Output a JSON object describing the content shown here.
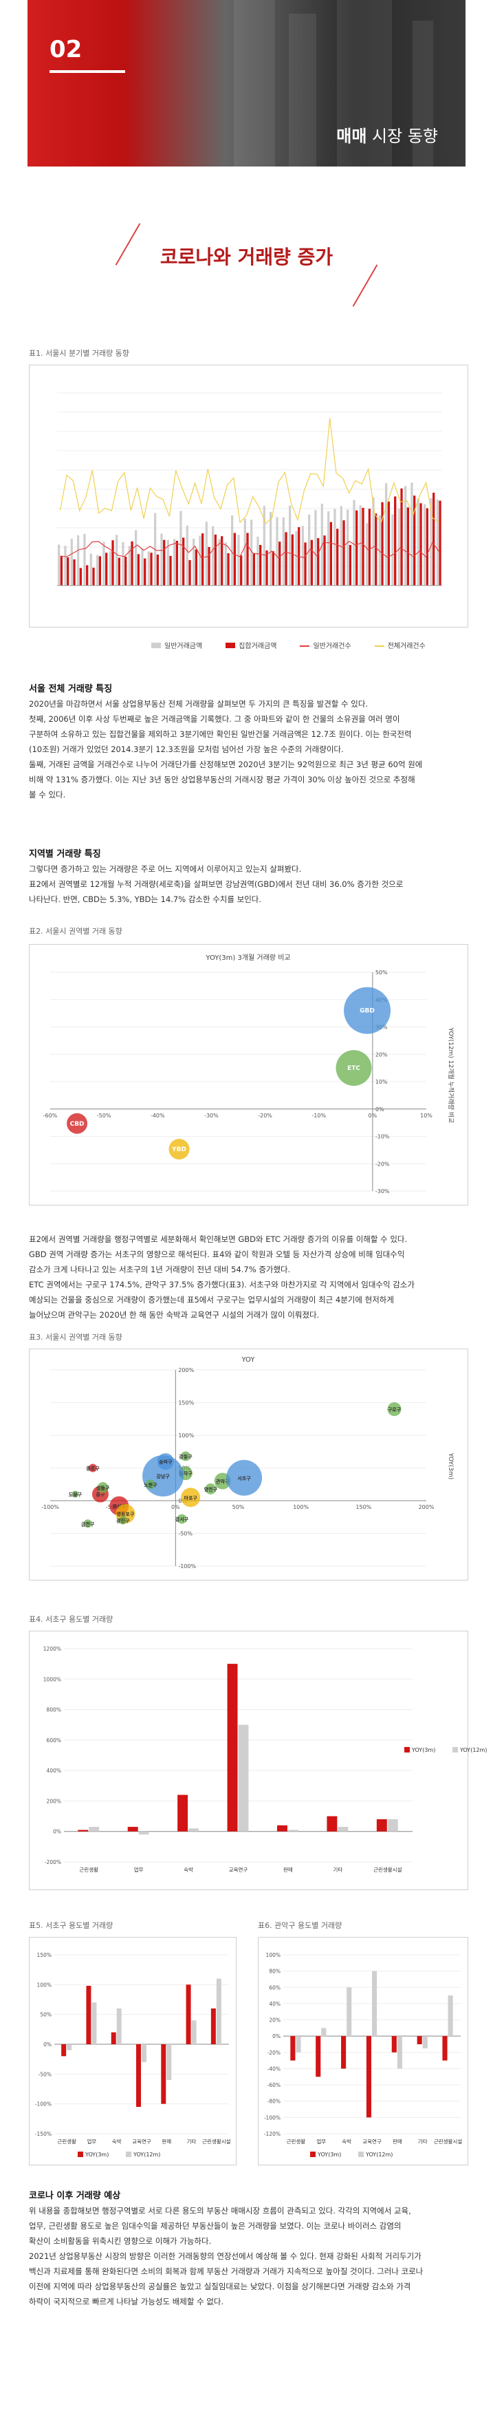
{
  "hero": {
    "number": "02",
    "caption_bold": "매매",
    "caption_rest": " 시장 동향"
  },
  "title": "코로나와 거래량 증가",
  "fig1": {
    "caption": "표1. 서울시 분기별 거래량 동향",
    "legend": [
      "일반거래금액",
      "집합거래금액",
      "일반거래건수",
      "전체거래건수"
    ],
    "colors": {
      "gray": "#cfcfcf",
      "red": "#d21414",
      "redline": "#e04040",
      "yellow": "#f0d050"
    }
  },
  "s1": {
    "heading": "서울 전체 거래량 특징",
    "lines": [
      "2020년을 마감하면서 서울 상업용부동산 전체 거래량을 살펴보면 두 가지의 큰 특징을 발견할 수 있다.",
      "첫째, 2006년 이후 사상 두번째로 높은 거래금액을 기록했다. 그 중 아파트와 같이 한 건물의 소유권을 여러 명이",
      "구분하여 소유하고 있는 집합건물을 제외하고 3분기에만 확인된 일반건물 거래금액은 12.7조 원이다. 이는 한국전력",
      "(10조원) 거래가 있었던 2014.3분기 12.3조원을 모처럼 넘어선 가장 높은 수준의 거래량이다.",
      "둘째, 거래된 금액을 거래건수로 나누어 거래단가를 산정해보면 2020년 3분기는 92억원으로 최근 3년 평균 60억 원에",
      "비해 약 131% 증가했다. 이는 지난 3년 동안 상업용부동산의 거래시장 평균 가격이 30% 이상 높아진 것으로 추정해",
      "볼 수 있다."
    ]
  },
  "s2": {
    "heading": "지역별 거래량 특징",
    "lines": [
      "그렇다면 증가하고 있는 거래량은 주로 어느 지역에서 이루어지고 있는지 살펴봤다.",
      "표2에서 권역별로 12개월 누적 거래량(세로축)을 살펴보면 강남권역(GBD)에서 전년 대비 36.0% 증가한 것으로",
      "나타난다. 반면, CBD는 5.3%, YBD는 14.7% 감소한 수치를 보인다."
    ]
  },
  "fig2": {
    "caption": "표2. 서울시 권역별 거래 동향",
    "title": "YOY(3m) 3개월 거래량 비교",
    "ylabel": "YOY(12m) 12개월 누적거래량 비교",
    "chart_data": {
      "type": "scatter",
      "title": "YOY(3m) 3개월 거래량 비교",
      "ylabel": "YOY(12m) 12개월 누적거래량 비교",
      "xlim": [
        -60,
        10
      ],
      "ylim": [
        -30,
        50
      ],
      "xticks": [
        "-60%",
        "-50%",
        "-40%",
        "-30%",
        "-20%",
        "-10%",
        "0%",
        "10%"
      ],
      "yticks": [
        "50%",
        "40%",
        "30%",
        "20%",
        "10%",
        "0%",
        "-10%",
        "-20%",
        "-30%"
      ],
      "points": [
        {
          "label": "GBD",
          "x": -1,
          "y": 36,
          "color": "#4a90d9"
        },
        {
          "label": "ETC",
          "x": -3.5,
          "y": 15,
          "color": "#6ab04c"
        },
        {
          "label": "CBD",
          "x": -55,
          "y": -5.3,
          "color": "#d21414"
        },
        {
          "label": "YBD",
          "x": -36,
          "y": -14.7,
          "color": "#f0b400"
        }
      ]
    }
  },
  "s3": {
    "lines": [
      "표2에서 권역별 거래량을 행정구역별로 세분화해서 확인해보면 GBD와 ETC 거래량 증가의 이유를 이해할 수 있다.",
      "GBD 권역 거래량 증가는 서초구의 영향으로 해석된다. 표4와 같이 학원과 오텔 등 자산가격 상승에 비해 임대수익",
      "감소가 크게 나타나고 있는 서초구의 1년 거래량이 전년 대비 54.7% 증가했다.",
      "ETC 권역에서는 구로구 174.5%, 관악구 37.5% 증가했다(표3). 서초구와 마찬가지로 각 지역에서 임대수익 감소가",
      "예상되는 건물을 중심으로 거래량이 증가했는데 표5에서 구로구는 업무시설의 거래량이 최근 4분기에 현저하게",
      "늘어났으며 관악구는 2020년 한 해 동안 숙박과 교육연구 시설의 거래가 많이 이뤄졌다."
    ]
  },
  "fig3": {
    "caption": "표3. 서울시 권역별 거래 동향",
    "title": "YOY",
    "ylabel": "YOY(3m)",
    "chart_data": {
      "type": "scatter",
      "title": "YOY",
      "xlim": [
        -100,
        200
      ],
      "ylim": [
        -100,
        200
      ],
      "xticks": [
        "-100%",
        "-50%",
        "0%",
        "50%",
        "100%",
        "150%",
        "200%"
      ],
      "yticks": [
        "200%",
        "150%",
        "100%",
        "50%",
        "0%",
        "-50%",
        "-100%"
      ],
      "points": [
        {
          "label": "구로구",
          "x": 174.5,
          "y": 140,
          "color": "#6ab04c",
          "r": 10
        },
        {
          "label": "관악구",
          "x": 37.5,
          "y": 30,
          "color": "#6ab04c",
          "r": 12
        },
        {
          "label": "동작구",
          "x": 8,
          "y": 42,
          "color": "#6ab04c",
          "r": 10
        },
        {
          "label": "서초구",
          "x": 54.7,
          "y": 35,
          "color": "#4a90d9",
          "r": 26
        },
        {
          "label": "강남구",
          "x": -10,
          "y": 38,
          "color": "#4a90d9",
          "r": 30
        },
        {
          "label": "송파구",
          "x": -8,
          "y": 60,
          "color": "#4a90d9",
          "r": 12
        },
        {
          "label": "종로구",
          "x": -66,
          "y": 50,
          "color": "#d21414",
          "r": 6
        },
        {
          "label": "중구",
          "x": -60,
          "y": 10,
          "color": "#d21414",
          "r": 12
        },
        {
          "label": "용산구",
          "x": -45,
          "y": -8,
          "color": "#d21414",
          "r": 14
        },
        {
          "label": "영등포구",
          "x": -40,
          "y": -20,
          "color": "#f0b400",
          "r": 14
        },
        {
          "label": "마포구",
          "x": 12,
          "y": 5,
          "color": "#f0b400",
          "r": 14
        },
        {
          "label": "성동구",
          "x": -58,
          "y": 20,
          "color": "#6ab04c",
          "r": 8
        },
        {
          "label": "도봉구",
          "x": -80,
          "y": 10,
          "color": "#6ab04c",
          "r": 5
        },
        {
          "label": "금천구",
          "x": -70,
          "y": -35,
          "color": "#6ab04c",
          "r": 6
        },
        {
          "label": "광진구",
          "x": -42,
          "y": -30,
          "color": "#6ab04c",
          "r": 6
        },
        {
          "label": "강서구",
          "x": 5,
          "y": -28,
          "color": "#6ab04c",
          "r": 7
        },
        {
          "label": "양천구",
          "x": 28,
          "y": 18,
          "color": "#6ab04c",
          "r": 8
        },
        {
          "label": "강동구",
          "x": 8,
          "y": 68,
          "color": "#6ab04c",
          "r": 7
        },
        {
          "label": "노원구",
          "x": -20,
          "y": 25,
          "color": "#6ab04c",
          "r": 7
        }
      ]
    }
  },
  "fig4": {
    "caption": "표4. 서초구 용도별 거래량",
    "legend": [
      "YOY(3m)",
      "YOY(12m)"
    ],
    "chart_data": {
      "type": "bar",
      "categories": [
        "근린생활",
        "업무",
        "숙박",
        "교육연구",
        "판매",
        "기타",
        "근린생활시설"
      ],
      "ylim": [
        -200,
        1200
      ],
      "yticks": [
        "1200%",
        "1000%",
        "800%",
        "600%",
        "400%",
        "200%",
        "0%",
        "-200%"
      ],
      "series": [
        {
          "name": "YOY(3m)",
          "values": [
            10,
            30,
            240,
            1100,
            40,
            100,
            80
          ],
          "color": "#d21414"
        },
        {
          "name": "YOY(12m)",
          "values": [
            30,
            -20,
            20,
            700,
            10,
            30,
            80
          ],
          "color": "#cfcfcf"
        }
      ]
    }
  },
  "fig5": {
    "caption": "표5. 서초구 용도별 거래량",
    "legend": [
      "YOY(3m)",
      "YOY(12m)"
    ],
    "chart_data": {
      "type": "bar",
      "categories": [
        "근린생활",
        "업무",
        "숙박",
        "교육연구",
        "판매",
        "기타",
        "근린생활시설"
      ],
      "ylim": [
        -150,
        150
      ],
      "yticks": [
        "150%",
        "100%",
        "50%",
        "0%",
        "-50%",
        "-100%",
        "-150%"
      ],
      "series": [
        {
          "name": "YOY(3m)",
          "values": [
            -20,
            98,
            20,
            -105,
            -100,
            100,
            60
          ],
          "color": "#d21414"
        },
        {
          "name": "YOY(12m)",
          "values": [
            -10,
            70,
            60,
            -30,
            -60,
            40,
            110
          ],
          "color": "#cfcfcf"
        }
      ]
    }
  },
  "fig6": {
    "caption": "표6. 관악구 용도별 거래량",
    "legend": [
      "YOY(3m)",
      "YOY(12m)"
    ],
    "chart_data": {
      "type": "bar",
      "categories": [
        "근린생활",
        "업무",
        "숙박",
        "교육연구",
        "판매",
        "기타",
        "근린생활시설"
      ],
      "ylim": [
        -120,
        100
      ],
      "yticks": [
        "100%",
        "80%",
        "60%",
        "40%",
        "20%",
        "0%",
        "-20%",
        "-40%",
        "-60%",
        "-80%",
        "-100%",
        "-120%"
      ],
      "series": [
        {
          "name": "YOY(3m)",
          "values": [
            -30,
            -50,
            -40,
            -100,
            -20,
            -10,
            -30
          ],
          "color": "#d21414"
        },
        {
          "name": "YOY(12m)",
          "values": [
            -20,
            10,
            60,
            80,
            -40,
            -15,
            50
          ],
          "color": "#cfcfcf"
        }
      ]
    }
  },
  "s4": {
    "heading": "코로나 이후 거래량 예상",
    "lines": [
      "위 내용을 종합해보면 행정구역별로 서로 다른 용도의 부동산 매매시장 흐름이 관측되고 있다. 각각의 지역에서 교육,",
      "업무, 근린생활 용도로 높은 임대수익을 제공하던 부동산들이 높은 거래량을 보였다. 이는 코로나 바이러스 감염의",
      "확산이 소비활동을 위축시킨 영향으로 이해가 가능하다.",
      "2021년 상업용부동산 시장의 방향은 이러한 거래동향의 연장선에서 예상해 볼 수 있다. 현재 강화된 사회적 거리두기가",
      "백신과 치료제를 통해 완화된다면 소비의 회복과 함께 부동산 거래량과 거래가 지속적으로 높아질 것이다. 그러나 코로나",
      "이전에 지역에 따라 상업용부동산의 공실률은 높았고 실질임대료는 낮았다. 이점을 상기해본다면 거래량 감소와 가격",
      "하락이 국지적으로 빠르게 나타날 가능성도 배제할 수 없다."
    ]
  }
}
